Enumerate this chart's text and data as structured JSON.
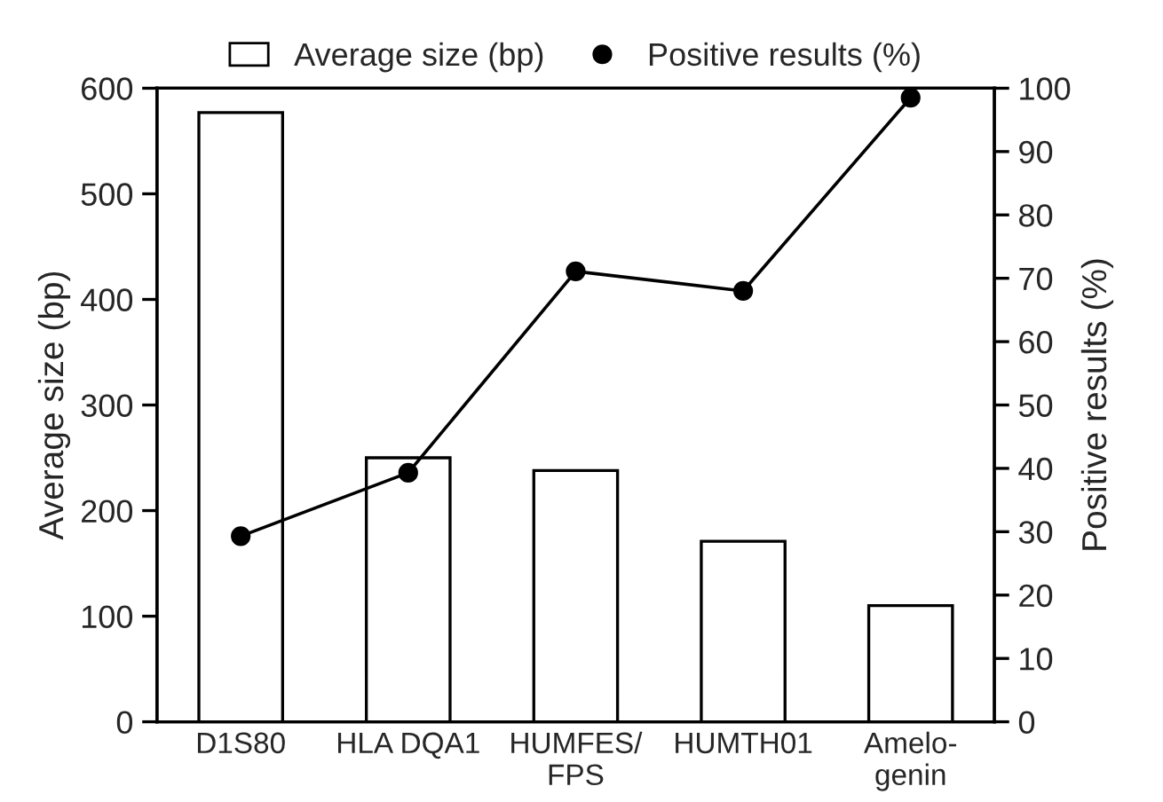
{
  "chart_data": {
    "type": "bar",
    "ylabel": "Average size (bp)",
    "y2label": "Positive results (%)",
    "categories": [
      "D1S80",
      "HLA DQA1",
      "HUMFES/\nFPS",
      "HUMTH01",
      "Amelo-\ngenin"
    ],
    "series": [
      {
        "name": "Average size (bp)",
        "color": "#ffffff",
        "values": [
          577,
          250,
          238,
          171,
          110
        ]
      },
      {
        "name": "Positive results (%)",
        "type": "line",
        "axis": "y2",
        "color": "#000000",
        "marker": "circle",
        "values": [
          29.3,
          39.3,
          71.1,
          68,
          98.5
        ]
      }
    ],
    "ylim": [
      0,
      600
    ],
    "yticks": [
      0,
      100,
      200,
      300,
      400,
      500,
      600
    ],
    "y2lim": [
      0,
      100
    ],
    "y2ticks": [
      0,
      10,
      20,
      30,
      40,
      50,
      60,
      70,
      80,
      90,
      100
    ],
    "grid": false,
    "legend": "top"
  }
}
